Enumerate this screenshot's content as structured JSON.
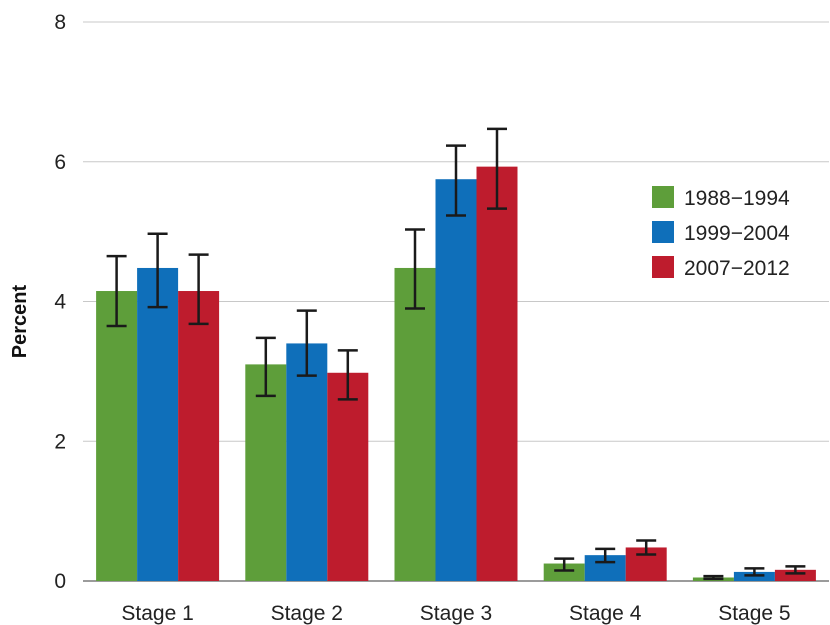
{
  "chart_data": {
    "type": "bar",
    "title": "",
    "xlabel": "",
    "ylabel": "Percent",
    "ylim": [
      0,
      8
    ],
    "yticks": [
      0,
      2,
      4,
      6,
      8
    ],
    "grid": true,
    "legend_position": "right",
    "categories": [
      "Stage 1",
      "Stage 2",
      "Stage 3",
      "Stage 4",
      "Stage 5"
    ],
    "series": [
      {
        "name": "1988−1994",
        "color": "#5e9e3a",
        "values": [
          4.15,
          3.1,
          4.48,
          0.25,
          0.05
        ],
        "err_low": [
          3.65,
          2.65,
          3.9,
          0.15,
          0.03
        ],
        "err_high": [
          4.65,
          3.48,
          5.03,
          0.32,
          0.07
        ]
      },
      {
        "name": "1999−2004",
        "color": "#0f6fba",
        "values": [
          4.48,
          3.4,
          5.75,
          0.37,
          0.13
        ],
        "err_low": [
          3.92,
          2.94,
          5.23,
          0.27,
          0.08
        ],
        "err_high": [
          4.97,
          3.87,
          6.23,
          0.46,
          0.18
        ]
      },
      {
        "name": "2007−2012",
        "color": "#be1c2d",
        "values": [
          4.15,
          2.98,
          5.93,
          0.48,
          0.16
        ],
        "err_low": [
          3.68,
          2.6,
          5.33,
          0.38,
          0.11
        ],
        "err_high": [
          4.67,
          3.3,
          6.47,
          0.58,
          0.21
        ]
      }
    ]
  }
}
